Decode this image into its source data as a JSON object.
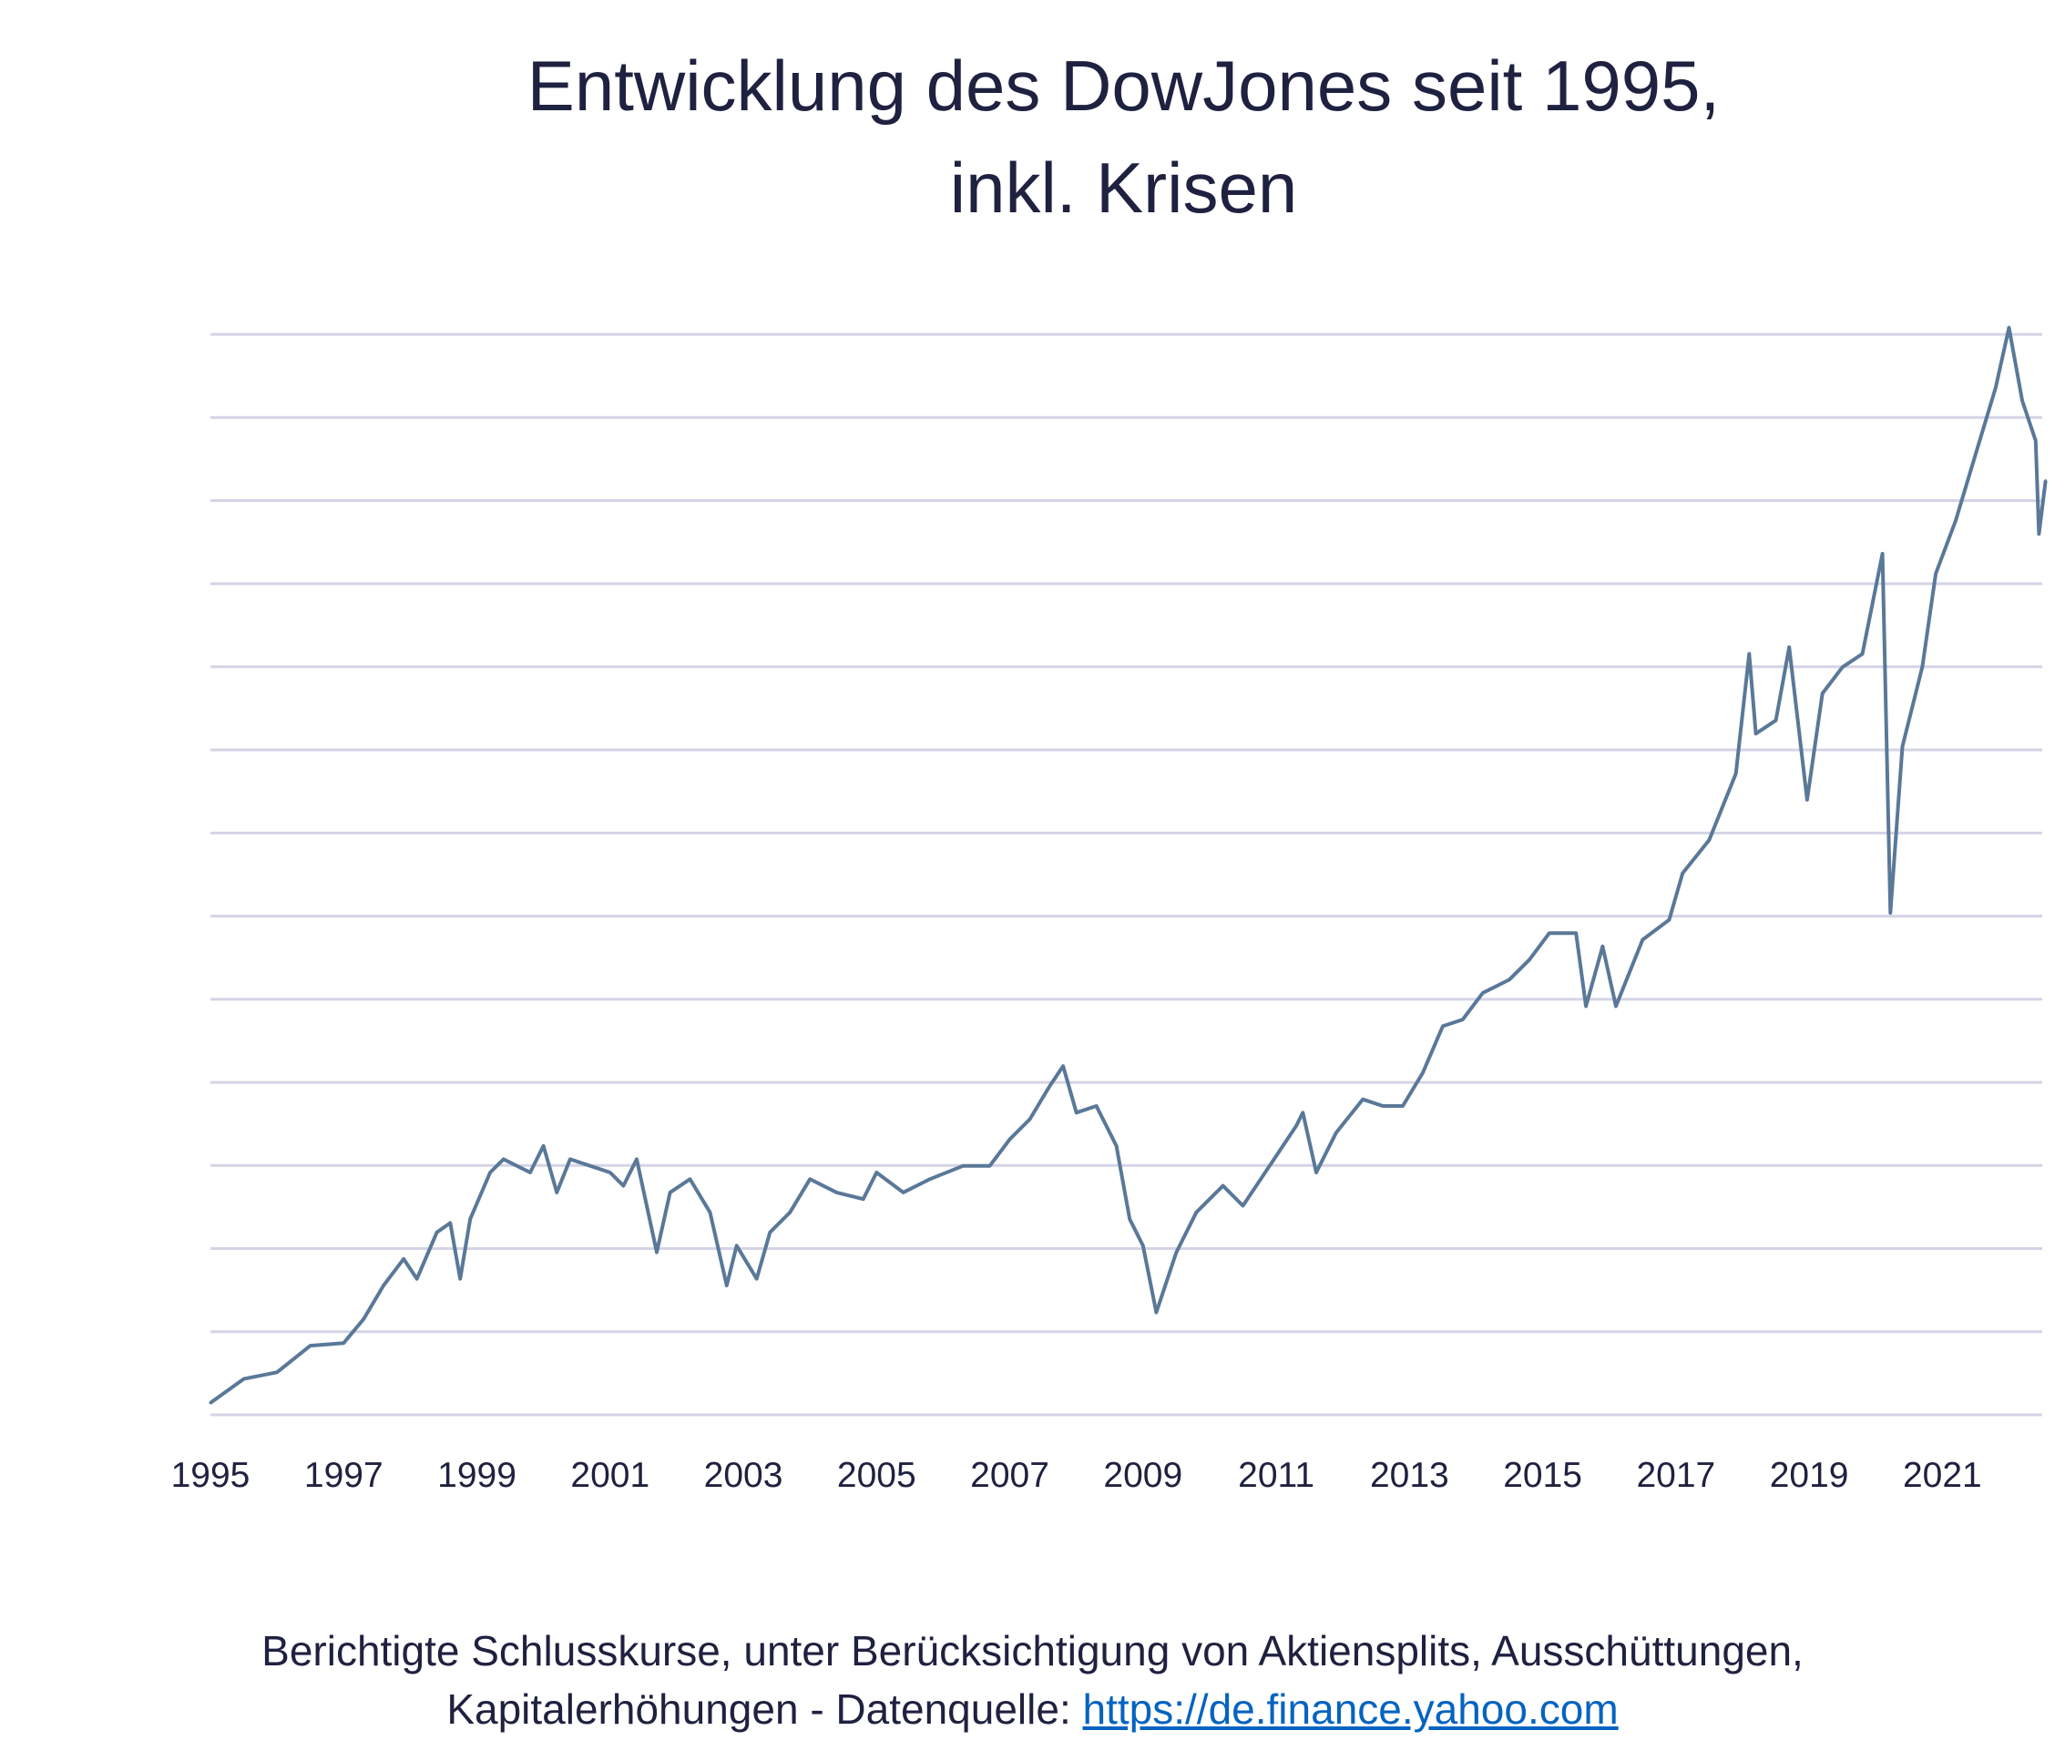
{
  "chart_data": {
    "type": "line",
    "title": [
      "Entwicklung des DowJones seit 1995,",
      "inkl. Krisen"
    ],
    "xlabel": "",
    "ylabel": "",
    "x_ticks": [
      "1995",
      "1997",
      "1999",
      "2001",
      "2003",
      "2005",
      "2007",
      "2009",
      "2011",
      "2013",
      "2015",
      "2017",
      "2019",
      "2021"
    ],
    "xlim": [
      1995,
      2022.55
    ],
    "ylim": [
      3500,
      36000
    ],
    "y_grid_step": 2500,
    "y_tick_labels_shown": false,
    "grid": true,
    "line_color": "#5a7898",
    "grid_color": "#d4d4e6",
    "series": [
      {
        "x": [
          1995.0,
          1995.5,
          1996.0,
          1996.5,
          1997.0,
          1997.3,
          1997.6,
          1997.9,
          1998.1,
          1998.4,
          1998.6,
          1998.75,
          1998.9,
          1999.2,
          1999.4,
          1999.8,
          2000.0,
          2000.2,
          2000.4,
          2000.7,
          2001.0,
          2001.2,
          2001.4,
          2001.7,
          2001.9,
          2002.2,
          2002.5,
          2002.75,
          2002.9,
          2003.2,
          2003.4,
          2003.7,
          2004.0,
          2004.4,
          2004.8,
          2005.0,
          2005.4,
          2005.8,
          2006.3,
          2006.7,
          2007.0,
          2007.3,
          2007.6,
          2007.8,
          2008.0,
          2008.3,
          2008.6,
          2008.8,
          2009.0,
          2009.2,
          2009.5,
          2009.8,
          2010.2,
          2010.5,
          2010.9,
          2011.3,
          2011.4,
          2011.6,
          2011.9,
          2012.3,
          2012.6,
          2012.9,
          2013.2,
          2013.5,
          2013.8,
          2014.1,
          2014.5,
          2014.8,
          2015.1,
          2015.5,
          2015.65,
          2015.9,
          2016.1,
          2016.5,
          2016.9,
          2017.1,
          2017.5,
          2017.9,
          2018.1,
          2018.2,
          2018.5,
          2018.7,
          2018.97,
          2019.2,
          2019.5,
          2019.8,
          2020.1,
          2020.22,
          2020.4,
          2020.7,
          2020.9,
          2021.2,
          2021.5,
          2021.8,
          2022.0,
          2022.2,
          2022.4,
          2022.45,
          2022.55
        ],
        "y": [
          3860,
          4580,
          4780,
          5580,
          5660,
          6380,
          7390,
          8190,
          7590,
          8990,
          9270,
          7590,
          9390,
          10790,
          11190,
          10790,
          11590,
          10190,
          11190,
          10990,
          10790,
          10390,
          11190,
          8390,
          10190,
          10590,
          9590,
          7390,
          8590,
          7590,
          8990,
          9590,
          10590,
          10190,
          9990,
          10790,
          10190,
          10590,
          10990,
          10990,
          11790,
          12390,
          13390,
          13990,
          12590,
          12790,
          11590,
          9390,
          8590,
          6580,
          8390,
          9590,
          10390,
          9790,
          10990,
          12190,
          12590,
          10790,
          11990,
          12990,
          12790,
          12790,
          13790,
          15190,
          15390,
          16190,
          16590,
          17190,
          17990,
          17990,
          15790,
          17590,
          15790,
          17790,
          18390,
          19790,
          20790,
          22790,
          26390,
          23990,
          24390,
          26590,
          22000,
          25200,
          25990,
          26390,
          29400,
          18600,
          23600,
          26000,
          28800,
          30400,
          32400,
          34400,
          36200,
          34000,
          32800,
          30000,
          31600
        ]
      }
    ]
  },
  "footer": {
    "line1": "Berichtigte Schlusskurse, unter Berücksichtigung von Aktiensplits, Ausschüttungen,",
    "line2_prefix": "Kapitalerhöhungen - Datenquelle: ",
    "link": "https://de.finance.yahoo.com"
  }
}
